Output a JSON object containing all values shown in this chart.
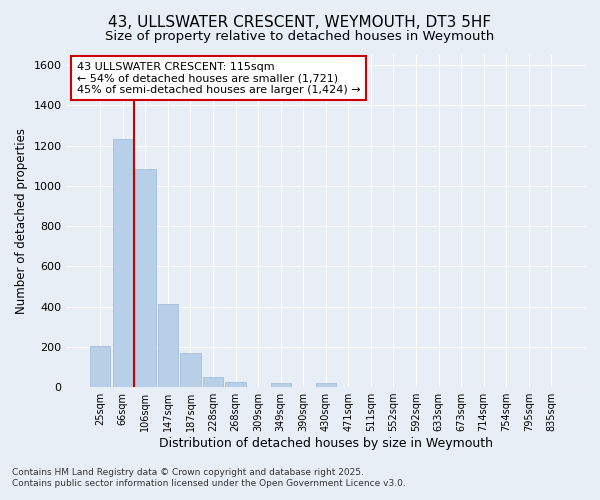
{
  "title": "43, ULLSWATER CRESCENT, WEYMOUTH, DT3 5HF",
  "subtitle": "Size of property relative to detached houses in Weymouth",
  "xlabel": "Distribution of detached houses by size in Weymouth",
  "ylabel": "Number of detached properties",
  "categories": [
    "25sqm",
    "66sqm",
    "106sqm",
    "147sqm",
    "187sqm",
    "228sqm",
    "268sqm",
    "309sqm",
    "349sqm",
    "390sqm",
    "430sqm",
    "471sqm",
    "511sqm",
    "552sqm",
    "592sqm",
    "633sqm",
    "673sqm",
    "714sqm",
    "754sqm",
    "795sqm",
    "835sqm"
  ],
  "values": [
    205,
    1235,
    1085,
    415,
    170,
    50,
    25,
    0,
    20,
    0,
    20,
    0,
    0,
    0,
    0,
    0,
    0,
    0,
    0,
    0,
    0
  ],
  "bar_color": "#b8cfe8",
  "bar_edge_color": "#9db8d8",
  "vline_x_index": 1.5,
  "vline_color": "#cc0000",
  "annotation_text": "43 ULLSWATER CRESCENT: 115sqm\n← 54% of detached houses are smaller (1,721)\n45% of semi-detached houses are larger (1,424) →",
  "annotation_box_color": "#cc0000",
  "ylim": [
    0,
    1650
  ],
  "yticks": [
    0,
    200,
    400,
    600,
    800,
    1000,
    1200,
    1400,
    1600
  ],
  "footnote1": "Contains HM Land Registry data © Crown copyright and database right 2025.",
  "footnote2": "Contains public sector information licensed under the Open Government Licence v3.0.",
  "bg_color": "#e8eef6",
  "grid_color": "#ffffff",
  "title_fontsize": 11,
  "subtitle_fontsize": 9.5,
  "xlabel_fontsize": 9,
  "ylabel_fontsize": 8.5,
  "annotation_fontsize": 8
}
